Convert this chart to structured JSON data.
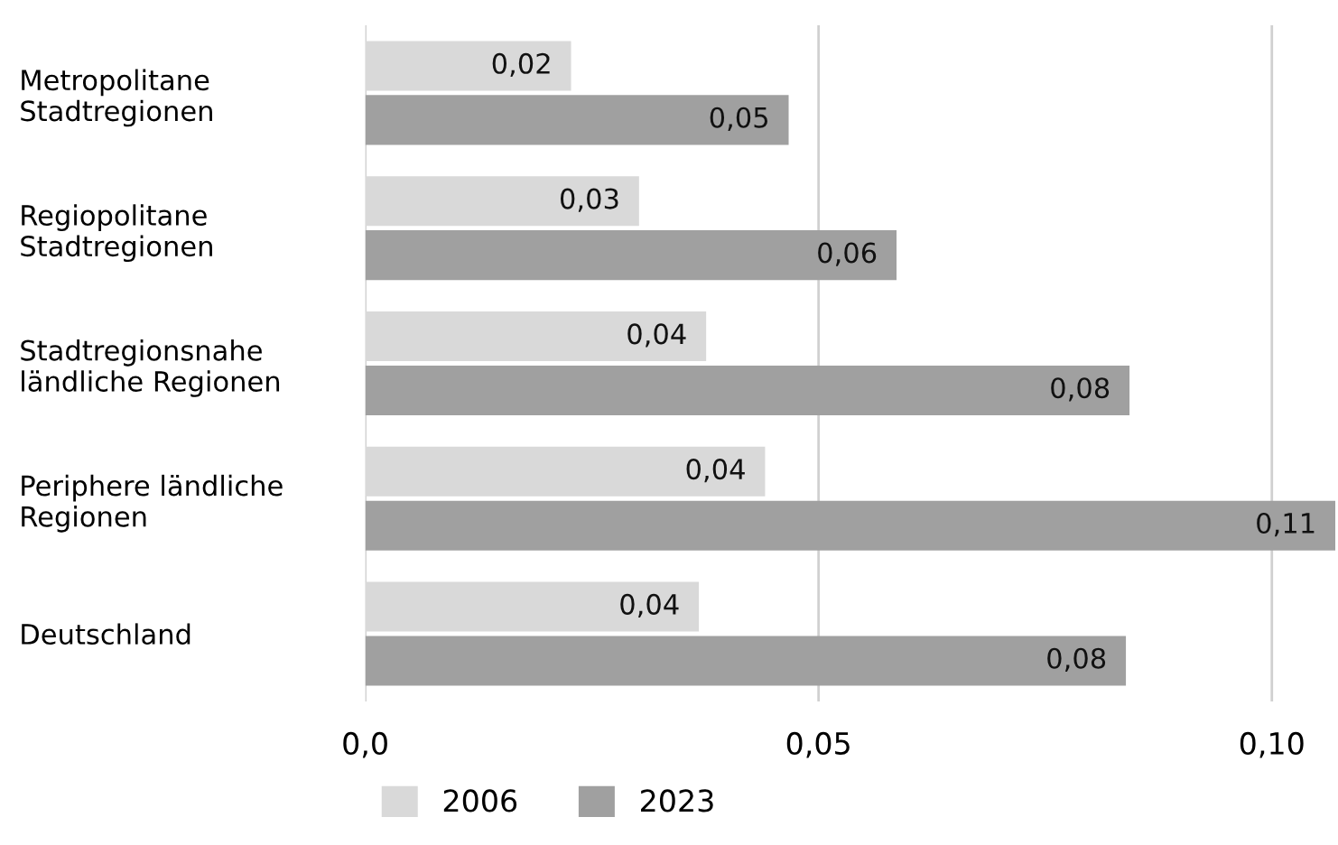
{
  "chart_data": {
    "type": "bar",
    "orientation": "horizontal",
    "categories": [
      "Metropolitane\nStadtregionen",
      "Regiopolitane\nStadtregionen",
      "Stadtregionsnahe\nländliche Regionen",
      "Periphere ländliche\nRegionen",
      "Deutschland"
    ],
    "series": [
      {
        "name": "2006",
        "color": "#d9d9d9",
        "values": [
          0.0227,
          0.0302,
          0.0376,
          0.0441,
          0.0368
        ],
        "value_labels": [
          "0,02",
          "0,03",
          "0,04",
          "0,04",
          "0,04"
        ]
      },
      {
        "name": "2023",
        "color": "#a0a0a0",
        "values": [
          0.0467,
          0.0586,
          0.0843,
          0.107,
          0.0839
        ],
        "value_labels": [
          "0,05",
          "0,06",
          "0,08",
          "0,11",
          "0,08"
        ]
      }
    ],
    "xlim": [
      0,
      0.107
    ],
    "xticks": [
      {
        "value": 0,
        "label": "0,0"
      },
      {
        "value": 0.05,
        "label": "0,05"
      },
      {
        "value": 0.1,
        "label": "0,10"
      }
    ],
    "grid": "x",
    "legend": "bottom left"
  }
}
